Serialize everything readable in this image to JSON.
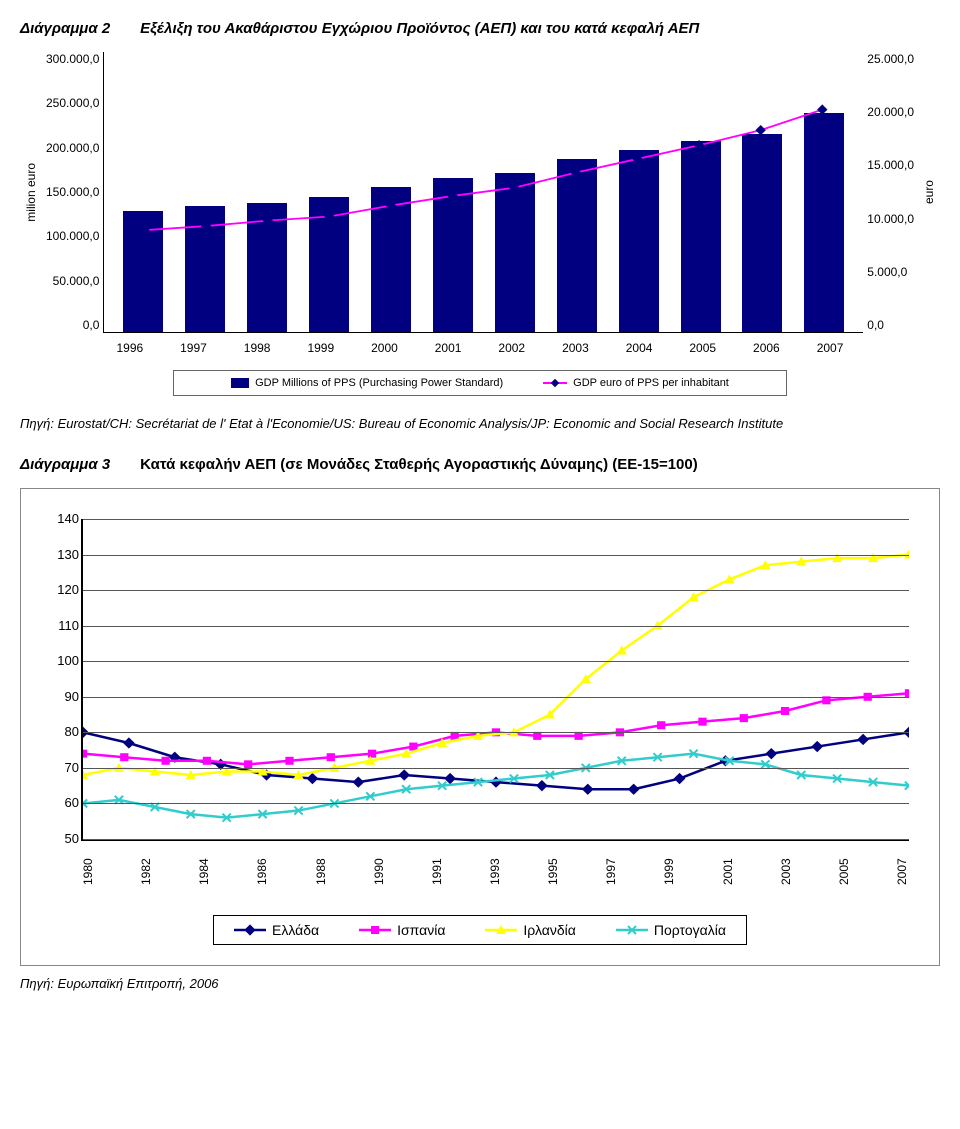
{
  "chart1": {
    "title_prefix": "Διάγραμμα 2",
    "title": "Εξέλιξη του Ακαθάριστου Εγχώριου Προϊόντος (ΑΕΠ) και του κατά κεφαλή ΑΕΠ",
    "type": "bar+line",
    "left_axis_label": "milion euro",
    "right_axis_label": "euro",
    "years": [
      "1996",
      "1997",
      "1998",
      "1999",
      "2000",
      "2001",
      "2002",
      "2003",
      "2004",
      "2005",
      "2006",
      "2007"
    ],
    "left_ticks": [
      "300.000,0",
      "250.000,0",
      "200.000,0",
      "150.000,0",
      "100.000,0",
      "50.000,0",
      "0,0"
    ],
    "right_ticks": [
      "25.000,0",
      "20.000,0",
      "15.000,0",
      "10.000,0",
      "5.000,0",
      "0,0"
    ],
    "left_max": 300000,
    "right_max": 25000,
    "bars": [
      130000,
      135000,
      138000,
      145000,
      155000,
      165000,
      170000,
      185000,
      195000,
      205000,
      212000,
      235000
    ],
    "line": [
      12000,
      12300,
      12700,
      13000,
      13800,
      14500,
      15100,
      16200,
      17200,
      18200,
      19300,
      20800
    ],
    "bar_color": "#000080",
    "line_color": "#ff00ff",
    "marker_color": "#000080",
    "background_color": "#ffffff",
    "legend": {
      "bar_label": "GDP Millions of PPS (Purchasing Power Standard)",
      "line_label": "GDP euro of PPS per inhabitant"
    }
  },
  "source1": "Πηγή: Eurostat/CH: Secrétariat de l' Etat à l'Economie/US: Bureau of Economic Analysis/JP: Economic and Social Research Institute",
  "chart2": {
    "title_prefix": "Διάγραμμα 3",
    "title": "Κατά κεφαλήν ΑΕΠ (σε Μονάδες Σταθερής Αγοραστικής Δύναμης) (ΕΕ-15=100)",
    "type": "line",
    "years": [
      "1980",
      "1982",
      "1984",
      "1986",
      "1988",
      "1990",
      "1991",
      "1993",
      "1995",
      "1997",
      "1999",
      "2001",
      "2003",
      "2005",
      "2007"
    ],
    "y_ticks": [
      50,
      60,
      70,
      80,
      90,
      100,
      110,
      120,
      130,
      140
    ],
    "ylim": [
      50,
      140
    ],
    "series": [
      {
        "name": "Ελλάδα",
        "color": "#000080",
        "marker": "diamond",
        "values": [
          80,
          77,
          73,
          71,
          68,
          67,
          66,
          68,
          67,
          66,
          65,
          64,
          64,
          67,
          72,
          74,
          76,
          78,
          80
        ]
      },
      {
        "name": "Ισπανία",
        "color": "#ff00ff",
        "marker": "square",
        "values": [
          74,
          73,
          72,
          72,
          71,
          72,
          73,
          74,
          76,
          79,
          80,
          79,
          79,
          80,
          82,
          83,
          84,
          86,
          89,
          90,
          91
        ]
      },
      {
        "name": "Ιρλανδία",
        "color": "#ffff00",
        "marker": "triangle",
        "values": [
          68,
          70,
          69,
          68,
          69,
          69,
          68,
          70,
          72,
          74,
          77,
          79,
          80,
          85,
          95,
          103,
          110,
          118,
          123,
          127,
          128,
          129,
          129,
          130
        ]
      },
      {
        "name": "Πορτογαλία",
        "color": "#33cccc",
        "marker": "x",
        "values": [
          60,
          61,
          59,
          57,
          56,
          57,
          58,
          60,
          62,
          64,
          65,
          66,
          67,
          68,
          70,
          72,
          73,
          74,
          72,
          71,
          68,
          67,
          66,
          65
        ]
      }
    ],
    "sampled_years": [
      "1980",
      "1982",
      "1984",
      "1986",
      "1988",
      "1990",
      "1991",
      "1993",
      "1995",
      "1997",
      "1999",
      "2001",
      "2003",
      "2005",
      "2007"
    ],
    "legend_labels": [
      "Ελλάδα",
      "Ισπανία",
      "Ιρλανδία",
      "Πορτογαλία"
    ],
    "grid_color": "#555555"
  },
  "source2": "Πηγή: Ευρωπαϊκή Επιτροπή, 2006"
}
